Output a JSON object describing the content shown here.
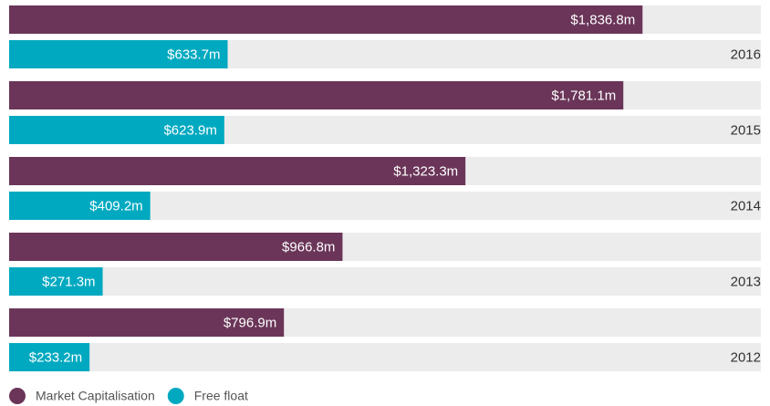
{
  "chart_data": {
    "type": "bar",
    "orientation": "horizontal",
    "categories": [
      "2016",
      "2015",
      "2014",
      "2013",
      "2012"
    ],
    "series": [
      {
        "name": "Market Capitalisation",
        "color": "#6a3558",
        "values": [
          1836.8,
          1781.1,
          1323.3,
          966.8,
          796.9
        ],
        "value_labels": [
          "$1,836.8m",
          "$1,781.1m",
          "$1,323.3m",
          "$966.8m",
          "$796.9m"
        ]
      },
      {
        "name": "Free float",
        "color": "#00a9c0",
        "values": [
          633.7,
          623.9,
          409.2,
          271.3,
          233.2
        ],
        "value_labels": [
          "$633.7m",
          "$623.9m",
          "$409.2m",
          "$271.3m",
          "$233.2m"
        ]
      }
    ],
    "xlim": [
      0,
      2180
    ]
  }
}
